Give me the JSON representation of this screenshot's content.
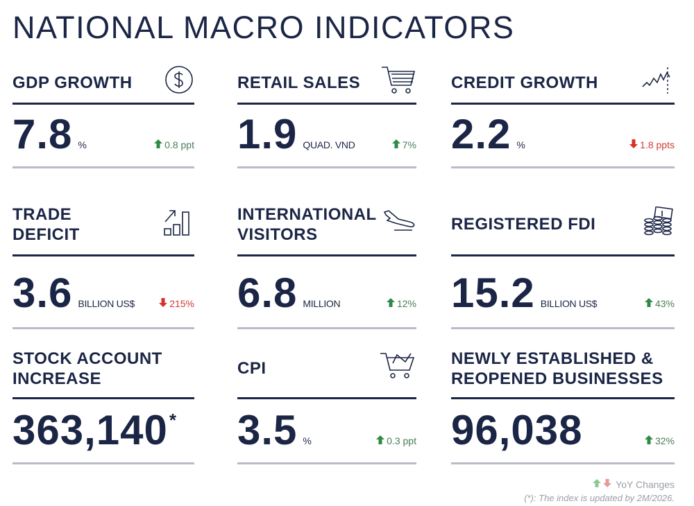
{
  "header": {
    "title": "NATIONAL MACRO INDICATORS"
  },
  "indicators": [
    {
      "title": [
        "GDP GROWTH"
      ],
      "value": "7.8",
      "unit": "%",
      "change": {
        "direction": "up",
        "text": "0.8 ppt"
      }
    },
    {
      "title": [
        "RETAIL SALES"
      ],
      "value": "1.9",
      "unit": "QUAD. VND",
      "change": {
        "direction": "up",
        "text": "7%"
      }
    },
    {
      "title": [
        "CREDIT GROWTH"
      ],
      "value": "2.2",
      "unit": "%",
      "change": {
        "direction": "down",
        "text": "1.8 ppts"
      }
    },
    {
      "title": [
        "TRADE",
        "DEFICIT"
      ],
      "value": "3.6",
      "unit": "BILLION US$",
      "change": {
        "direction": "down",
        "text": "215%"
      }
    },
    {
      "title": [
        "INTERNATIONAL",
        "VISITORS"
      ],
      "value": "6.8",
      "unit": "MILLION",
      "change": {
        "direction": "up",
        "text": "12%"
      }
    },
    {
      "title": [
        "REGISTERED FDI"
      ],
      "value": "15.2",
      "unit": "BILLION US$",
      "change": {
        "direction": "up",
        "text": "43%"
      }
    },
    {
      "title": [
        "STOCK ACCOUNT",
        "INCREASE"
      ],
      "value": "363,140",
      "note_marker": "*"
    },
    {
      "title": [
        "CPI"
      ],
      "value": "3.5",
      "unit": "%",
      "change": {
        "direction": "up",
        "text": "0.3 ppt"
      }
    },
    {
      "title": [
        "NEWLY ESTABLISHED &",
        "REOPENED BUSINESSES"
      ],
      "value": "96,038",
      "change": {
        "direction": "up",
        "text": "32%"
      }
    }
  ],
  "footer": {
    "legend": "YoY Changes",
    "note": "(*): The index is updated by 2M/2026."
  }
}
